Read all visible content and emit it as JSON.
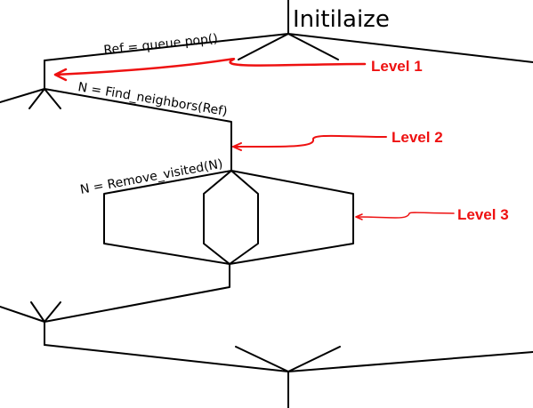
{
  "title": "Initilaize",
  "edges": {
    "ref": "Ref = queue.pop()",
    "neighbors": "N = Find_neighbors(Ref)",
    "remove": "N = Remove_visited(N)"
  },
  "levels": {
    "one": "Level 1",
    "two": "Level 2",
    "three": "Level 3"
  },
  "colors": {
    "line": "#000000",
    "annotation": "#ee1111"
  }
}
